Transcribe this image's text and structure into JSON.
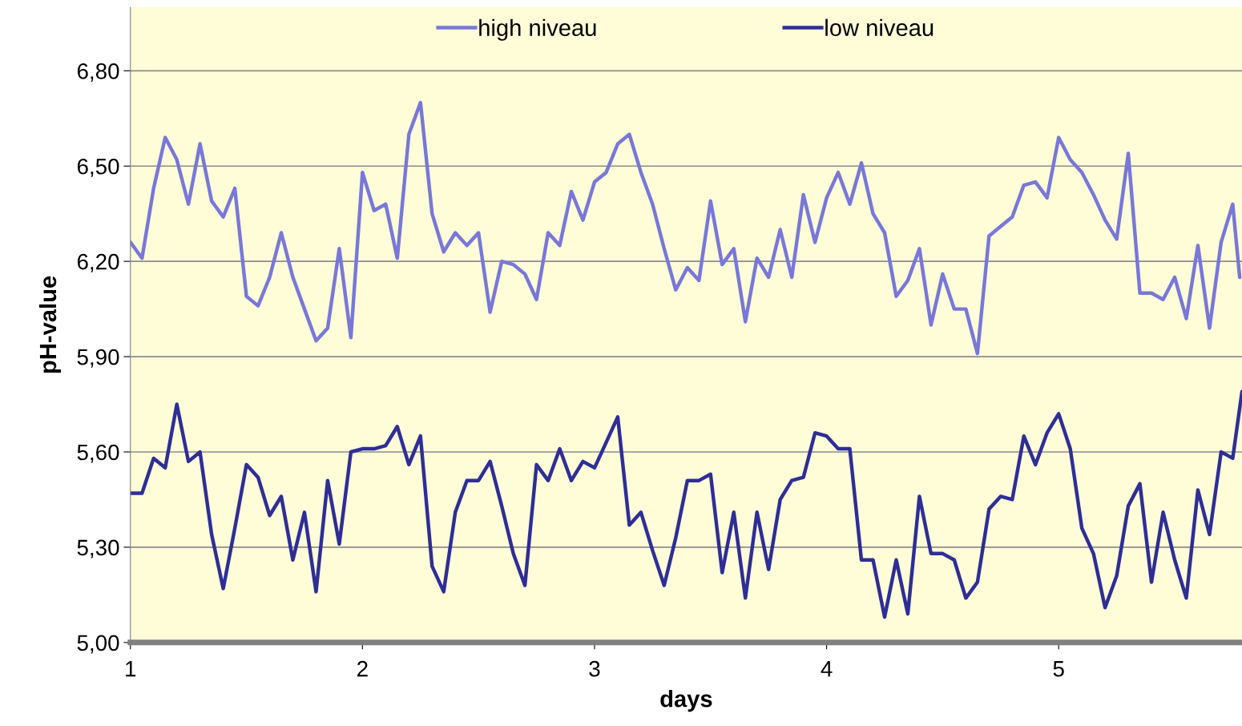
{
  "chart_data": {
    "type": "line",
    "xlabel": "days",
    "ylabel": "pH-value",
    "xlim": [
      1,
      5.79
    ],
    "xticks": [
      1,
      2,
      3,
      4,
      5
    ],
    "ylim": [
      5.0,
      7.0
    ],
    "yticks": [
      {
        "value": 5.0,
        "label": "5,00"
      },
      {
        "value": 5.3,
        "label": "5,30"
      },
      {
        "value": 5.6,
        "label": "5,60"
      },
      {
        "value": 5.9,
        "label": "5,90"
      },
      {
        "value": 6.2,
        "label": "6,20"
      },
      {
        "value": 6.5,
        "label": "6,50"
      },
      {
        "value": 6.8,
        "label": "6,80"
      }
    ],
    "grid": "y",
    "legend": "top",
    "marker": "none",
    "line_style": "solid",
    "series": [
      {
        "name": "high niveau",
        "color": "#7878d8",
        "x": [
          1.0,
          1.05,
          1.1,
          1.15,
          1.2,
          1.25,
          1.3,
          1.35,
          1.4,
          1.45,
          1.5,
          1.55,
          1.6,
          1.65,
          1.7,
          1.75,
          1.8,
          1.85,
          1.9,
          1.95,
          2.0,
          2.05,
          2.1,
          2.15,
          2.2,
          2.25,
          2.3,
          2.35,
          2.4,
          2.45,
          2.5,
          2.55,
          2.6,
          2.65,
          2.7,
          2.75,
          2.8,
          2.85,
          2.9,
          2.95,
          3.0,
          3.05,
          3.1,
          3.15,
          3.2,
          3.25,
          3.3,
          3.35,
          3.4,
          3.45,
          3.5,
          3.55,
          3.6,
          3.65,
          3.7,
          3.75,
          3.8,
          3.85,
          3.9,
          3.95,
          4.0,
          4.05,
          4.1,
          4.15,
          4.2,
          4.25,
          4.3,
          4.35,
          4.4,
          4.45,
          4.5,
          4.55,
          4.6,
          4.65,
          4.7,
          4.75,
          4.8,
          4.85,
          4.9,
          4.95,
          5.0,
          5.05,
          5.1,
          5.15,
          5.2,
          5.25,
          5.3,
          5.35,
          5.4,
          5.45,
          5.5,
          5.55,
          5.6,
          5.65,
          5.7,
          5.75,
          5.78
        ],
        "values": [
          6.26,
          6.21,
          6.43,
          6.59,
          6.52,
          6.38,
          6.57,
          6.39,
          6.34,
          6.43,
          6.09,
          6.06,
          6.15,
          6.29,
          6.15,
          6.05,
          5.95,
          5.99,
          6.24,
          5.96,
          6.48,
          6.36,
          6.38,
          6.21,
          6.6,
          6.7,
          6.35,
          6.23,
          6.29,
          6.25,
          6.29,
          6.04,
          6.2,
          6.19,
          6.16,
          6.08,
          6.29,
          6.25,
          6.42,
          6.33,
          6.45,
          6.48,
          6.57,
          6.6,
          6.48,
          6.38,
          6.24,
          6.11,
          6.18,
          6.14,
          6.39,
          6.19,
          6.24,
          6.01,
          6.21,
          6.15,
          6.3,
          6.15,
          6.41,
          6.26,
          6.4,
          6.48,
          6.38,
          6.51,
          6.35,
          6.29,
          6.09,
          6.14,
          6.24,
          6.0,
          6.16,
          6.05,
          6.05,
          5.91,
          6.28,
          6.31,
          6.34,
          6.44,
          6.45,
          6.4,
          6.59,
          6.52,
          6.48,
          6.41,
          6.33,
          6.27,
          6.54,
          6.1,
          6.1,
          6.08,
          6.15,
          6.02,
          6.25,
          5.99,
          6.26,
          6.38,
          6.15
        ]
      },
      {
        "name": "low niveau",
        "color": "#2e2e96",
        "x": [
          1.0,
          1.05,
          1.1,
          1.15,
          1.2,
          1.25,
          1.3,
          1.35,
          1.4,
          1.45,
          1.5,
          1.55,
          1.6,
          1.65,
          1.7,
          1.75,
          1.8,
          1.85,
          1.9,
          1.95,
          2.0,
          2.05,
          2.1,
          2.15,
          2.2,
          2.25,
          2.3,
          2.35,
          2.4,
          2.45,
          2.5,
          2.55,
          2.6,
          2.65,
          2.7,
          2.75,
          2.8,
          2.85,
          2.9,
          2.95,
          3.0,
          3.05,
          3.1,
          3.15,
          3.2,
          3.25,
          3.3,
          3.35,
          3.4,
          3.45,
          3.5,
          3.55,
          3.6,
          3.65,
          3.7,
          3.75,
          3.8,
          3.85,
          3.9,
          3.95,
          4.0,
          4.05,
          4.1,
          4.15,
          4.2,
          4.25,
          4.3,
          4.35,
          4.4,
          4.45,
          4.5,
          4.55,
          4.6,
          4.65,
          4.7,
          4.75,
          4.8,
          4.85,
          4.9,
          4.95,
          5.0,
          5.05,
          5.1,
          5.15,
          5.2,
          5.25,
          5.3,
          5.35,
          5.4,
          5.45,
          5.5,
          5.55,
          5.6,
          5.65,
          5.7,
          5.75,
          5.79
        ],
        "values": [
          5.47,
          5.47,
          5.58,
          5.55,
          5.75,
          5.57,
          5.6,
          5.34,
          5.17,
          5.36,
          5.56,
          5.52,
          5.4,
          5.46,
          5.26,
          5.41,
          5.16,
          5.51,
          5.31,
          5.6,
          5.61,
          5.61,
          5.62,
          5.68,
          5.56,
          5.65,
          5.24,
          5.16,
          5.41,
          5.51,
          5.51,
          5.57,
          5.43,
          5.28,
          5.18,
          5.56,
          5.51,
          5.61,
          5.51,
          5.57,
          5.55,
          5.63,
          5.71,
          5.37,
          5.41,
          5.29,
          5.18,
          5.33,
          5.51,
          5.51,
          5.53,
          5.22,
          5.41,
          5.14,
          5.41,
          5.23,
          5.45,
          5.51,
          5.52,
          5.66,
          5.65,
          5.61,
          5.61,
          5.26,
          5.26,
          5.08,
          5.26,
          5.09,
          5.46,
          5.28,
          5.28,
          5.26,
          5.14,
          5.19,
          5.42,
          5.46,
          5.45,
          5.65,
          5.56,
          5.66,
          5.72,
          5.61,
          5.36,
          5.28,
          5.11,
          5.21,
          5.43,
          5.5,
          5.19,
          5.41,
          5.26,
          5.14,
          5.48,
          5.34,
          5.6,
          5.58,
          5.79
        ]
      }
    ]
  }
}
